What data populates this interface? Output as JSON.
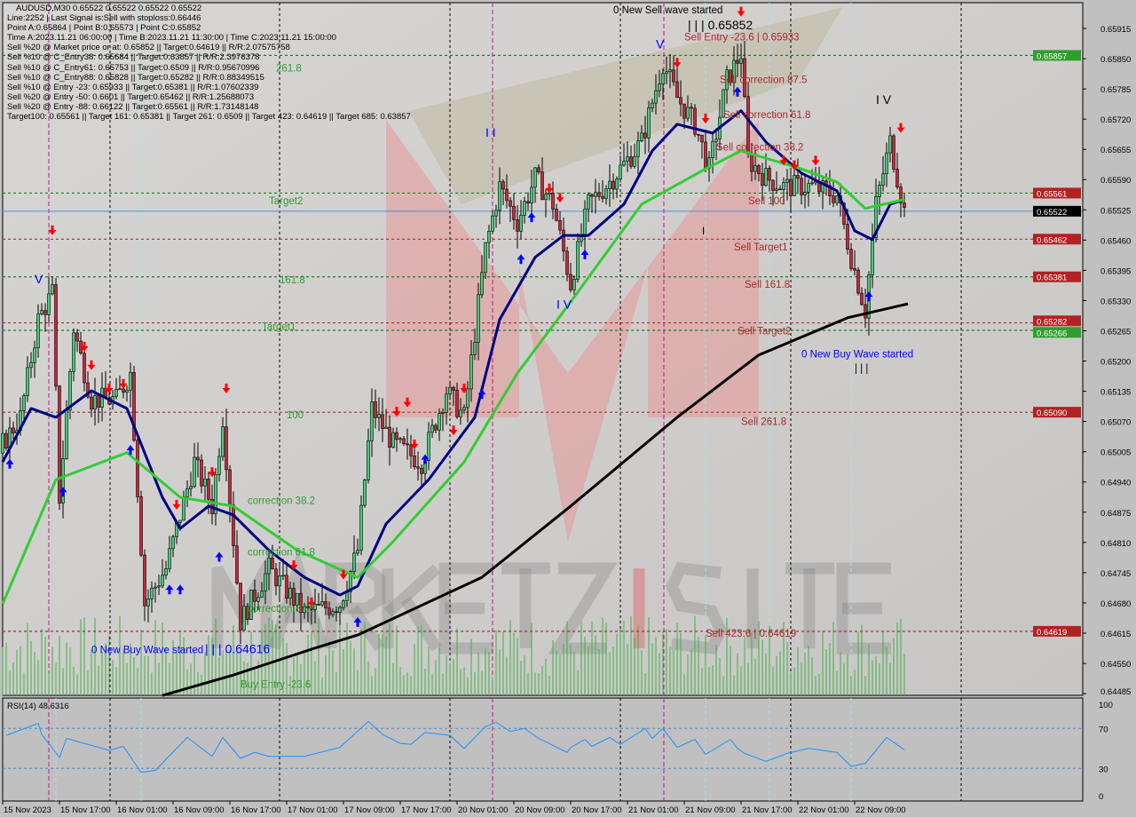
{
  "info_panel": {
    "title": "AUDUSD,M30  0.65522 0.65522 0.65522 0.65522",
    "lines": [
      "Line:2252 | Last Signal is:Sell with stoploss:0.66446",
      "Point A:0.65864 | Point B:0.65573 | Point C:0.65852",
      "Time A:2023.11.21 06:00:00 | Time B:2023.11.21 11:30:00 | Time C:2023.11.21 15:00:00",
      "Sell %20 @ Market price or at: 0.65852 || Target:0.64619 || R/R:2.07575758",
      "Sell %10 @ C_Entry38: 0.65684 || Target:0.63857 || R/R:2.3976378",
      "Sell %10 @ C_Entry61: 0.65753 || Target:0.6509 || R/R:0.95670996",
      "Sell %10 @ C_Entry88: 0.65828 || Target:0.65282 || R/R:0.88349515",
      "Sell %10 @ Entry -23: 0.65933 || Target:0.65381 || R/R:1.07602339",
      "Sell %20 @ Entry -50: 0.6601 || Target:0.65462 || R/R:1.25688073",
      "Sell %20 @ Entry -88: 0.66122 || Target:0.65561 || R/R:1.73148148",
      "Target100: 0.65561 || Target 161: 0.65381 || Target 261: 0.6509 || Target 423: 0.64619 || Target 685: 0.63857"
    ]
  },
  "watermark": "MARKETZISITE",
  "chart_data": {
    "type": "candlestick",
    "symbol": "AUDUSD",
    "timeframe": "M30",
    "ylim": [
      0.6446,
      0.6596
    ],
    "price_ticks": [
      "0.65915",
      "0.65850",
      "0.65785",
      "0.65720",
      "0.65655",
      "0.65590",
      "0.65525",
      "0.65460",
      "0.65395",
      "0.65330",
      "0.65265",
      "0.65200",
      "0.65135",
      "0.65070",
      "0.65005",
      "0.64940",
      "0.64875",
      "0.64810",
      "0.64745",
      "0.64680",
      "0.64615",
      "0.64550",
      "0.64485"
    ],
    "time_ticks": [
      "15 Nov 2023",
      "15 Nov 17:00",
      "16 Nov 01:00",
      "16 Nov 09:00",
      "16 Nov 17:00",
      "17 Nov 01:00",
      "17 Nov 09:00",
      "17 Nov 17:00",
      "20 Nov 01:00",
      "20 Nov 09:00",
      "20 Nov 17:00",
      "21 Nov 01:00",
      "21 Nov 09:00",
      "21 Nov 17:00",
      "22 Nov 01:00",
      "22 Nov 09:00"
    ],
    "close_path": [
      [
        0,
        0.65022
      ],
      [
        5,
        0.65079
      ],
      [
        10,
        0.65289
      ],
      [
        14,
        0.65346
      ],
      [
        16,
        0.64907
      ],
      [
        20,
        0.6527
      ],
      [
        25,
        0.65117
      ],
      [
        32,
        0.65117
      ],
      [
        36,
        0.65174
      ],
      [
        40,
        0.64678
      ],
      [
        46,
        0.64754
      ],
      [
        54,
        0.64983
      ],
      [
        59,
        0.64888
      ],
      [
        62,
        0.65079
      ],
      [
        67,
        0.6464
      ],
      [
        75,
        0.64754
      ],
      [
        85,
        0.64659
      ],
      [
        95,
        0.64678
      ],
      [
        100,
        0.64793
      ],
      [
        104,
        0.65098
      ],
      [
        110,
        0.65022
      ],
      [
        118,
        0.64983
      ],
      [
        125,
        0.65136
      ],
      [
        130,
        0.65079
      ],
      [
        136,
        0.65442
      ],
      [
        140,
        0.65575
      ],
      [
        145,
        0.65499
      ],
      [
        150,
        0.65594
      ],
      [
        155,
        0.65537
      ],
      [
        160,
        0.65365
      ],
      [
        165,
        0.65537
      ],
      [
        172,
        0.65594
      ],
      [
        180,
        0.65671
      ],
      [
        186,
        0.65842
      ],
      [
        190,
        0.65766
      ],
      [
        195,
        0.65709
      ],
      [
        199,
        0.65613
      ],
      [
        204,
        0.65804
      ],
      [
        208,
        0.65862
      ],
      [
        210,
        0.65633
      ],
      [
        215,
        0.65594
      ],
      [
        220,
        0.65575
      ],
      [
        228,
        0.65575
      ],
      [
        235,
        0.65556
      ],
      [
        239,
        0.65423
      ],
      [
        243,
        0.65308
      ],
      [
        246,
        0.65537
      ],
      [
        250,
        0.65671
      ],
      [
        254,
        0.65522
      ]
    ],
    "moving_averages": [
      {
        "color": "#000080",
        "values": [
          [
            0,
            0.64983
          ],
          [
            8,
            0.65098
          ],
          [
            15,
            0.65079
          ],
          [
            25,
            0.65136
          ],
          [
            35,
            0.65098
          ],
          [
            45,
            0.64907
          ],
          [
            50,
            0.6484
          ],
          [
            58,
            0.64888
          ],
          [
            65,
            0.64869
          ],
          [
            75,
            0.64793
          ],
          [
            85,
            0.64735
          ],
          [
            95,
            0.64697
          ],
          [
            100,
            0.64716
          ],
          [
            108,
            0.6485
          ],
          [
            120,
            0.64945
          ],
          [
            133,
            0.65079
          ],
          [
            140,
            0.65289
          ],
          [
            150,
            0.65423
          ],
          [
            158,
            0.6547
          ],
          [
            165,
            0.6547
          ],
          [
            175,
            0.65537
          ],
          [
            183,
            0.65652
          ],
          [
            190,
            0.65709
          ],
          [
            200,
            0.6569
          ],
          [
            208,
            0.65738
          ],
          [
            215,
            0.65671
          ],
          [
            225,
            0.65604
          ],
          [
            235,
            0.65566
          ],
          [
            240,
            0.6548
          ],
          [
            245,
            0.65461
          ],
          [
            250,
            0.65537
          ],
          [
            254,
            0.65547
          ]
        ]
      },
      {
        "color": "#32cd32",
        "values": [
          [
            0,
            0.64678
          ],
          [
            15,
            0.64945
          ],
          [
            35,
            0.65003
          ],
          [
            50,
            0.64907
          ],
          [
            65,
            0.64888
          ],
          [
            83,
            0.64793
          ],
          [
            100,
            0.64735
          ],
          [
            110,
            0.64812
          ],
          [
            130,
            0.64983
          ],
          [
            145,
            0.65174
          ],
          [
            160,
            0.65327
          ],
          [
            180,
            0.65537
          ],
          [
            198,
            0.65613
          ],
          [
            208,
            0.65652
          ],
          [
            225,
            0.65613
          ],
          [
            235,
            0.65585
          ],
          [
            243,
            0.65528
          ],
          [
            254,
            0.65547
          ]
        ]
      },
      {
        "color": "#000000",
        "values": [
          [
            45,
            0.64481
          ],
          [
            65,
            0.64525
          ],
          [
            88,
            0.64583
          ],
          [
            100,
            0.64611
          ],
          [
            135,
            0.64735
          ],
          [
            160,
            0.64888
          ],
          [
            190,
            0.65079
          ],
          [
            213,
            0.65213
          ],
          [
            238,
            0.65293
          ],
          [
            255,
            0.65323
          ]
        ]
      }
    ],
    "levels": [
      {
        "price": 0.65857,
        "label": "0.65857",
        "line": "#1a7f1a",
        "tag": "#2e9e2e"
      },
      {
        "price": 0.65561,
        "label": "0.65561",
        "line": "#1a7f1a",
        "tag": "#b22222"
      },
      {
        "price": 0.65522,
        "label": "0.65522",
        "line": "#4a90d9",
        "tag": "#000000",
        "solid": true
      },
      {
        "price": 0.65462,
        "label": "0.65462",
        "line": "#a03030",
        "tag": "#b22222"
      },
      {
        "price": 0.65381,
        "label": "0.65381",
        "line": "#1a7f1a",
        "tag": "#b22222"
      },
      {
        "price": 0.65282,
        "label": "0.65282",
        "line": "#a03030",
        "tag": "#b22222"
      },
      {
        "price": 0.65266,
        "label": "0.65266",
        "line": "#1a7f1a",
        "tag": "#2e9e2e"
      },
      {
        "price": 0.6509,
        "label": "0.65090",
        "line": "#a03030",
        "tag": "#b22222"
      },
      {
        "price": 0.64619,
        "label": "0.64619",
        "line": "#a03030",
        "tag": "#b22222"
      }
    ],
    "sell_arrows": [
      [
        14,
        0.6548
      ],
      [
        23,
        0.6523
      ],
      [
        25,
        0.6519
      ],
      [
        30,
        0.6514
      ],
      [
        34,
        0.6515
      ],
      [
        63,
        0.6514
      ],
      [
        49,
        0.6489
      ],
      [
        59,
        0.6496
      ],
      [
        82,
        0.6476
      ],
      [
        87,
        0.6468
      ],
      [
        96,
        0.6474
      ],
      [
        111,
        0.6509
      ],
      [
        114,
        0.6511
      ],
      [
        116,
        0.6502
      ],
      [
        127,
        0.6505
      ],
      [
        130,
        0.6514
      ],
      [
        154,
        0.6557
      ],
      [
        157,
        0.6555
      ],
      [
        190,
        0.6584
      ],
      [
        198,
        0.6572
      ],
      [
        220,
        0.6563
      ],
      [
        223,
        0.6562
      ],
      [
        229,
        0.6563
      ],
      [
        253,
        0.657
      ],
      [
        208,
        0.6595
      ]
    ],
    "buy_arrows": [
      [
        2,
        0.6498
      ],
      [
        17,
        0.6492
      ],
      [
        36,
        0.6501
      ],
      [
        47,
        0.6471
      ],
      [
        50,
        0.6471
      ],
      [
        61,
        0.6478
      ],
      [
        100,
        0.6464
      ],
      [
        119,
        0.6499
      ],
      [
        135,
        0.6513
      ],
      [
        146,
        0.6542
      ],
      [
        149,
        0.6551
      ],
      [
        164,
        0.6543
      ],
      [
        207,
        0.6578
      ],
      [
        244,
        0.6534
      ]
    ],
    "annotations": [
      {
        "text": "261.8",
        "color": "#2e9e2e",
        "bar": 77,
        "price": 0.6583
      },
      {
        "text": "Target2",
        "color": "#2e9e2e",
        "bar": 75,
        "price": 0.65545
      },
      {
        "text": "161.8",
        "color": "#2e9e2e",
        "bar": 78,
        "price": 0.65375
      },
      {
        "text": "Target1",
        "color": "#2e9e2e",
        "bar": 73,
        "price": 0.65275
      },
      {
        "text": "100",
        "color": "#2e9e2e",
        "bar": 80,
        "price": 0.65085
      },
      {
        "text": "correction 38.2",
        "color": "#2e9e2e",
        "bar": 69,
        "price": 0.649
      },
      {
        "text": "correction 61.8",
        "color": "#2e9e2e",
        "bar": 69,
        "price": 0.6479
      },
      {
        "text": "correction 87.5",
        "color": "#2e9e2e",
        "bar": 69,
        "price": 0.64668
      },
      {
        "text": "0 New Buy Wave started",
        "color": "#0000ff",
        "bar": 25,
        "price": 0.6458
      },
      {
        "text": "| | | 0.64616",
        "color": "#0000ff",
        "bar": 56,
        "price": 0.6458,
        "big": true
      },
      {
        "text": "Buy Entry -23.6",
        "color": "#2e9e2e",
        "bar": 67,
        "price": 0.64505
      },
      {
        "text": "0 New Sell wave started",
        "color": "#000000",
        "bar": 172,
        "price": 0.65955
      },
      {
        "text": "| | | 0.65852",
        "color": "#000000",
        "bar": 193,
        "price": 0.6594,
        "big": true
      },
      {
        "text": "Sell Entry -23.6 | 0.65933",
        "color": "#b22234",
        "bar": 192,
        "price": 0.6592
      },
      {
        "text": "Sell correction 87.5",
        "color": "#a52a2a",
        "bar": 202,
        "price": 0.65805
      },
      {
        "text": "Sell correction 61.8",
        "color": "#a52a2a",
        "bar": 203,
        "price": 0.6573
      },
      {
        "text": "Sell correction 38.2",
        "color": "#a52a2a",
        "bar": 201,
        "price": 0.6566
      },
      {
        "text": "Sell 100",
        "color": "#a52a2a",
        "bar": 210,
        "price": 0.65545
      },
      {
        "text": "Sell Target1",
        "color": "#a52a2a",
        "bar": 206,
        "price": 0.65445
      },
      {
        "text": "Sell 161.8",
        "color": "#a52a2a",
        "bar": 209,
        "price": 0.65365
      },
      {
        "text": "Sell Target2",
        "color": "#a52a2a",
        "bar": 207,
        "price": 0.65265
      },
      {
        "text": "0 New Buy Wave started",
        "color": "#0000ff",
        "bar": 225,
        "price": 0.65215
      },
      {
        "text": "| | |",
        "color": "#000000",
        "bar": 240,
        "price": 0.65185
      },
      {
        "text": "Sell 261.8",
        "color": "#a52a2a",
        "bar": 208,
        "price": 0.6507
      },
      {
        "text": "Sell 423.6 | 0.64619",
        "color": "#a52a2a",
        "bar": 198,
        "price": 0.64615
      },
      {
        "text": "V",
        "color": "#0000ff",
        "bar": 9,
        "price": 0.65375,
        "big": true
      },
      {
        "text": "V",
        "color": "#0000ff",
        "bar": 184,
        "price": 0.6588,
        "big": true
      },
      {
        "text": "I I",
        "color": "#0000ff",
        "bar": 136,
        "price": 0.6569,
        "big": true
      },
      {
        "text": "I V",
        "color": "#0000ff",
        "bar": 156,
        "price": 0.6532,
        "big": true
      },
      {
        "text": "I V",
        "color": "#000000",
        "bar": 246,
        "price": 0.6576,
        "big": true
      },
      {
        "text": "I",
        "color": "#000000",
        "bar": 197,
        "price": 0.6548
      }
    ],
    "rsi": {
      "label": "RSI(14) 48.6316",
      "levels": [
        70,
        30
      ],
      "ticks": [
        "100",
        "70",
        "30",
        "0"
      ],
      "values": [
        [
          1,
          63
        ],
        [
          10,
          75
        ],
        [
          11,
          64
        ],
        [
          16,
          41
        ],
        [
          18,
          60
        ],
        [
          30,
          48
        ],
        [
          34,
          52
        ],
        [
          39,
          26
        ],
        [
          43,
          28
        ],
        [
          52,
          61
        ],
        [
          59,
          42
        ],
        [
          62,
          61
        ],
        [
          67,
          40
        ],
        [
          71,
          46
        ],
        [
          75,
          42
        ],
        [
          85,
          42
        ],
        [
          95,
          51
        ],
        [
          103,
          77
        ],
        [
          107,
          64
        ],
        [
          112,
          55
        ],
        [
          115,
          54
        ],
        [
          119,
          66
        ],
        [
          126,
          63
        ],
        [
          130,
          50
        ],
        [
          136,
          72
        ],
        [
          139,
          76
        ],
        [
          143,
          67
        ],
        [
          147,
          70
        ],
        [
          151,
          60
        ],
        [
          159,
          46
        ],
        [
          160,
          51
        ],
        [
          164,
          59
        ],
        [
          166,
          52
        ],
        [
          171,
          61
        ],
        [
          174,
          54
        ],
        [
          181,
          70
        ],
        [
          183,
          60
        ],
        [
          186,
          70
        ],
        [
          190,
          51
        ],
        [
          195,
          59
        ],
        [
          198,
          44
        ],
        [
          205,
          59
        ],
        [
          207,
          50
        ],
        [
          209,
          45
        ],
        [
          215,
          37
        ],
        [
          221,
          45
        ],
        [
          227,
          50
        ],
        [
          235,
          46
        ],
        [
          239,
          32
        ],
        [
          243,
          35
        ],
        [
          249,
          61
        ],
        [
          254,
          48.63
        ]
      ]
    }
  }
}
